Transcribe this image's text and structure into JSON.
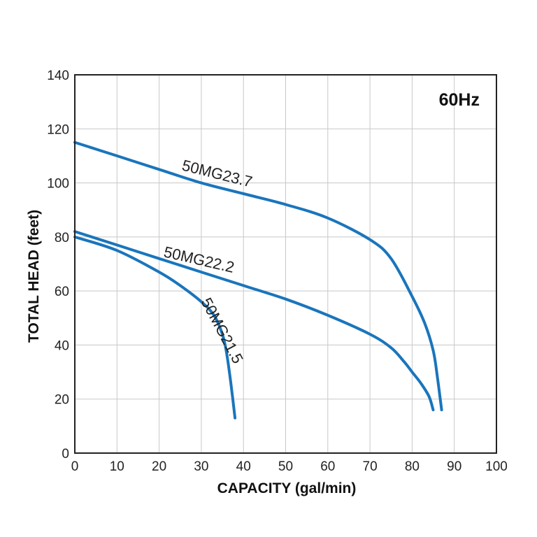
{
  "chart_data": {
    "type": "line",
    "frequency_label": "60Hz",
    "xlabel": "CAPACITY (gal/min)",
    "ylabel": "TOTAL HEAD (feet)",
    "xlim": [
      0,
      100
    ],
    "ylim": [
      0,
      140
    ],
    "xticks": [
      0,
      10,
      20,
      30,
      40,
      50,
      60,
      70,
      80,
      90,
      100
    ],
    "yticks": [
      0,
      20,
      40,
      60,
      80,
      100,
      120,
      140
    ],
    "grid": true,
    "line_color": "#1a75bc",
    "series": [
      {
        "name": "50MG23.7",
        "x": [
          0,
          10,
          20,
          30,
          40,
          50,
          60,
          70,
          75,
          80,
          83,
          85,
          86,
          87
        ],
        "y": [
          115,
          110,
          105,
          100,
          96,
          92,
          87,
          79,
          72,
          58,
          48,
          38,
          28,
          16
        ]
      },
      {
        "name": "50MG22.2",
        "x": [
          0,
          10,
          20,
          30,
          40,
          50,
          60,
          70,
          75,
          78,
          80,
          82,
          84,
          85
        ],
        "y": [
          82,
          77,
          72,
          67,
          62,
          57,
          51,
          44,
          39,
          34,
          30,
          26,
          21,
          16
        ]
      },
      {
        "name": "50MG21.5",
        "x": [
          0,
          10,
          20,
          25,
          30,
          33,
          35,
          36,
          37,
          38
        ],
        "y": [
          80,
          75,
          67,
          62,
          56,
          51,
          44,
          37,
          26,
          13
        ]
      }
    ]
  }
}
